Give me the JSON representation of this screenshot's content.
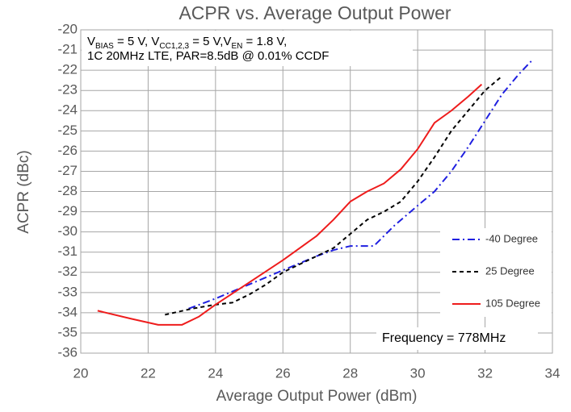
{
  "chart_data": {
    "type": "line",
    "title": "ACPR vs. Average Output Power",
    "xlabel": "Average Output Power (dBm)",
    "ylabel": "ACPR (dBc)",
    "annotation": [
      [
        "V",
        "BIAS",
        " = 5 V, V",
        "CC1,2,3",
        " = 5 V,V",
        "EN",
        " = 1.8 V,"
      ],
      [
        "1C 20MHz LTE, PAR=8.5dB @ 0.01% CCDF"
      ]
    ],
    "note": "Frequency = 778MHz",
    "xlim": [
      20,
      34
    ],
    "xticks": [
      20,
      22,
      24,
      26,
      28,
      30,
      32,
      34
    ],
    "ylim": [
      -36,
      -20
    ],
    "yticks": [
      -20,
      -21,
      -22,
      -23,
      -24,
      -25,
      -26,
      -27,
      -28,
      -29,
      -30,
      -31,
      -32,
      -33,
      -34,
      -35,
      -36
    ],
    "grid": true,
    "legend": "right",
    "series": [
      {
        "name": "-40 Degree",
        "color": "#1f1fe0",
        "dash": "dashdot",
        "x": [
          23.2,
          24,
          25,
          26,
          27,
          27.5,
          28,
          28.7,
          29.3,
          30,
          30.5,
          31,
          31.5,
          32,
          32.5,
          33,
          33.4
        ],
        "values": [
          -33.8,
          -33.3,
          -32.6,
          -31.9,
          -31.2,
          -30.9,
          -30.7,
          -30.7,
          -29.7,
          -28.7,
          -28.0,
          -27.0,
          -25.8,
          -24.5,
          -23.2,
          -22.2,
          -21.5
        ]
      },
      {
        "name": "25 Degree",
        "color": "#000000",
        "dash": "dashed",
        "x": [
          22.5,
          23.3,
          24,
          24.5,
          25,
          25.5,
          26,
          26.5,
          27,
          27.5,
          28,
          28.5,
          29,
          29.5,
          30,
          30.5,
          31,
          31.5,
          32,
          32.5
        ],
        "values": [
          -34.1,
          -33.8,
          -33.6,
          -33.5,
          -33.1,
          -32.6,
          -32.0,
          -31.6,
          -31.2,
          -30.8,
          -30.1,
          -29.4,
          -29.0,
          -28.5,
          -27.5,
          -26.3,
          -25.0,
          -24.0,
          -23.0,
          -22.3
        ]
      },
      {
        "name": "105 Degree",
        "color": "#ee1c1c",
        "dash": "solid",
        "x": [
          20.5,
          21.5,
          22.3,
          23,
          23.5,
          24,
          25,
          26,
          27,
          27.5,
          28,
          28.5,
          29,
          29.5,
          30,
          30.5,
          31,
          31.5,
          31.9
        ],
        "values": [
          -33.9,
          -34.3,
          -34.6,
          -34.6,
          -34.2,
          -33.6,
          -32.5,
          -31.4,
          -30.2,
          -29.4,
          -28.5,
          -28.0,
          -27.6,
          -26.9,
          -25.9,
          -24.6,
          -24.0,
          -23.3,
          -22.7
        ]
      }
    ]
  }
}
